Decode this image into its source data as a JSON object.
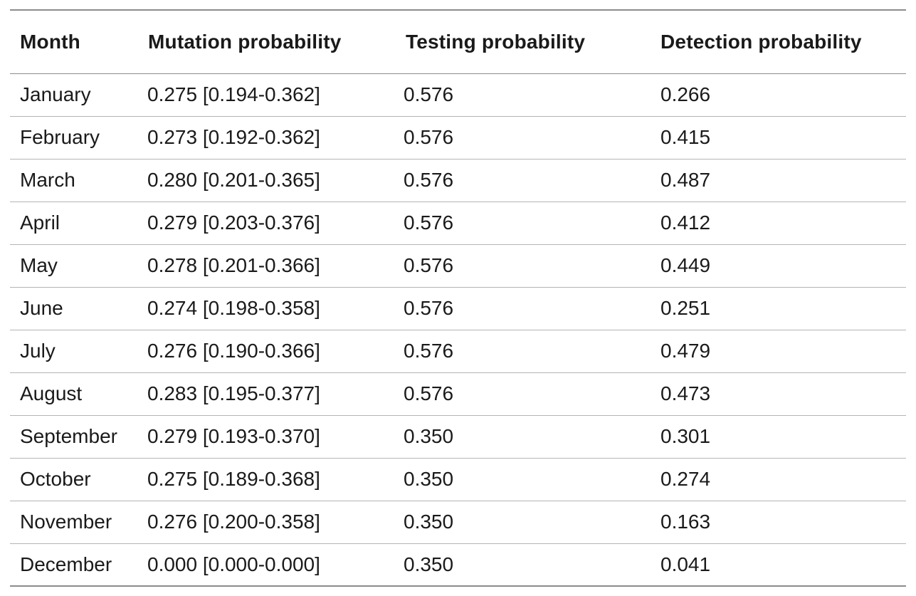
{
  "table": {
    "headers": {
      "month": "Month",
      "mutation": "Mutation probability",
      "testing": "Testing probability",
      "detection": "Detection probability"
    },
    "rows": [
      {
        "month": "January",
        "mutation": "0.275 [0.194-0.362]",
        "testing": "0.576",
        "detection": "0.266"
      },
      {
        "month": "February",
        "mutation": "0.273 [0.192-0.362]",
        "testing": "0.576",
        "detection": "0.415"
      },
      {
        "month": "March",
        "mutation": "0.280 [0.201-0.365]",
        "testing": "0.576",
        "detection": "0.487"
      },
      {
        "month": "April",
        "mutation": "0.279 [0.203-0.376]",
        "testing": "0.576",
        "detection": "0.412"
      },
      {
        "month": "May",
        "mutation": "0.278 [0.201-0.366]",
        "testing": "0.576",
        "detection": "0.449"
      },
      {
        "month": "June",
        "mutation": "0.274 [0.198-0.358]",
        "testing": "0.576",
        "detection": "0.251"
      },
      {
        "month": "July",
        "mutation": "0.276 [0.190-0.366]",
        "testing": "0.576",
        "detection": "0.479"
      },
      {
        "month": "August",
        "mutation": "0.283 [0.195-0.377]",
        "testing": "0.576",
        "detection": "0.473"
      },
      {
        "month": "September",
        "mutation": "0.279 [0.193-0.370]",
        "testing": "0.350",
        "detection": "0.301"
      },
      {
        "month": "October",
        "mutation": "0.275 [0.189-0.368]",
        "testing": "0.350",
        "detection": "0.274"
      },
      {
        "month": "November",
        "mutation": "0.276 [0.200-0.358]",
        "testing": "0.350",
        "detection": "0.163"
      },
      {
        "month": "December",
        "mutation": "0.000 [0.000-0.000]",
        "testing": "0.350",
        "detection": "0.041"
      }
    ]
  }
}
